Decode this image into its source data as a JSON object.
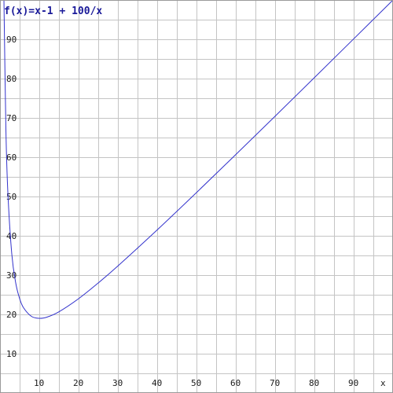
{
  "chart_data": {
    "type": "line",
    "title": "f(x)=x-1 + 100/x",
    "xlabel": "x",
    "ylabel": "",
    "xlim": [
      0,
      100
    ],
    "ylim": [
      0,
      100
    ],
    "grid": true,
    "x_ticks": [
      10,
      20,
      30,
      40,
      50,
      60,
      70,
      80,
      90
    ],
    "y_ticks": [
      10,
      20,
      30,
      40,
      50,
      60,
      70,
      80,
      90
    ],
    "x_tick_labels": [
      "10",
      "20",
      "30",
      "40",
      "50",
      "60",
      "70",
      "80",
      "90"
    ],
    "y_tick_labels": [
      "10",
      "20",
      "30",
      "40",
      "50",
      "60",
      "70",
      "80",
      "90"
    ],
    "series": [
      {
        "color": "#3333cc",
        "x": [
          1,
          1.5,
          2,
          3,
          4,
          5,
          6,
          8,
          10,
          12,
          15,
          20,
          25,
          30,
          40,
          50,
          60,
          70,
          80,
          90,
          100
        ],
        "y": [
          100,
          67.17,
          51,
          35.33,
          28,
          24,
          21.67,
          19.5,
          19,
          19.33,
          20.67,
          24,
          28,
          32.33,
          41.5,
          51,
          60.67,
          70.43,
          80.25,
          90.11,
          100
        ]
      }
    ]
  },
  "colors": {
    "title": "#1a1a99",
    "axis_label": "#333333",
    "grid": "#c4c4c4"
  }
}
